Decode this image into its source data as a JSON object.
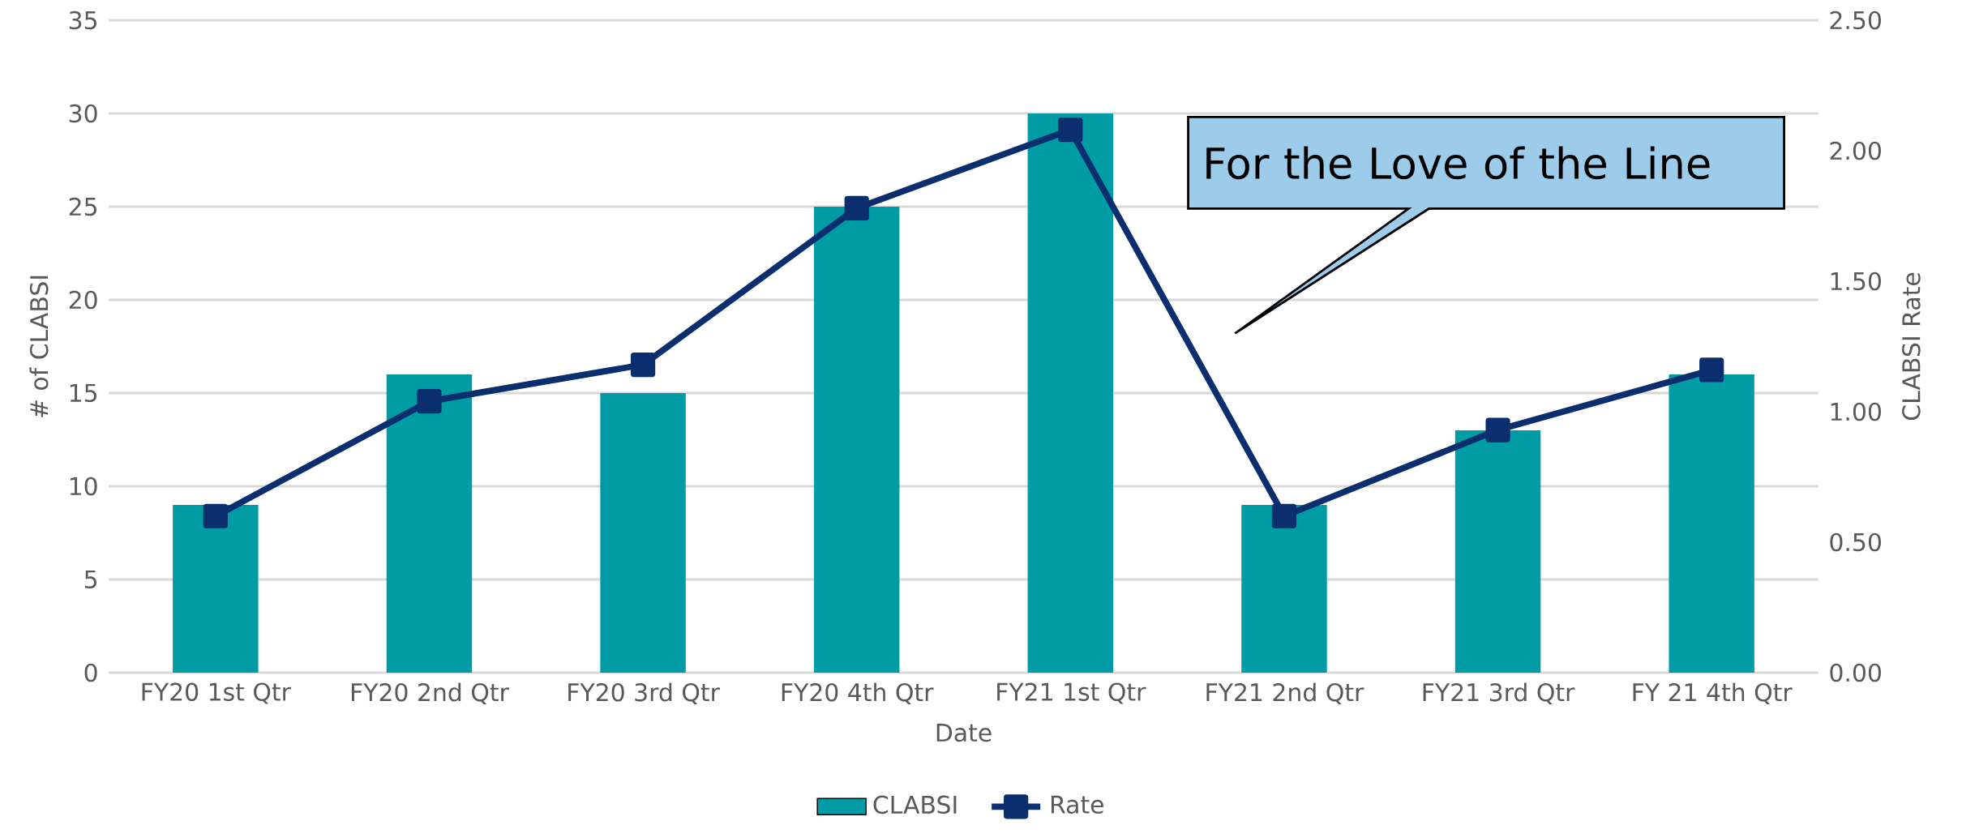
{
  "chart_data": {
    "type": "bar",
    "xlabel": "Date",
    "ylabel": "# of CLABSI",
    "y2label": "CLABSI Rate",
    "categories": [
      "FY20 1st Qtr",
      "FY20 2nd Qtr",
      "FY20 3rd Qtr",
      "FY20 4th Qtr",
      "FY21 1st Qtr",
      "FY21 2nd Qtr",
      "FY21 3rd Qtr",
      "FY 21 4th Qtr"
    ],
    "series": [
      {
        "name": "CLABSI",
        "color": "#009ca6",
        "values": [
          9,
          16,
          15,
          25,
          30,
          9,
          13,
          16
        ]
      },
      {
        "name": "Rate",
        "type": "line",
        "axis": "y2",
        "color": "#0a2e6e",
        "values": [
          0.6,
          1.04,
          1.18,
          1.78,
          2.08,
          0.6,
          0.93,
          1.16
        ]
      }
    ],
    "ylim": [
      0,
      35
    ],
    "yticks": [
      0,
      5,
      10,
      15,
      20,
      25,
      30,
      35
    ],
    "y2lim": [
      0,
      2.5
    ],
    "y2ticks": [
      {
        "value": 0,
        "label": "0.00"
      },
      {
        "value": 0.5,
        "label": "0.50"
      },
      {
        "value": 1,
        "label": "1.00"
      },
      {
        "value": 1.5,
        "label": "1.50"
      },
      {
        "value": 2,
        "label": "2.00"
      },
      {
        "value": 2.5,
        "label": "2.50"
      }
    ],
    "grid": "y",
    "legend": "bottom",
    "marker": "square",
    "line_style": "solid",
    "annotations": [
      "For the Love of the Line"
    ]
  }
}
